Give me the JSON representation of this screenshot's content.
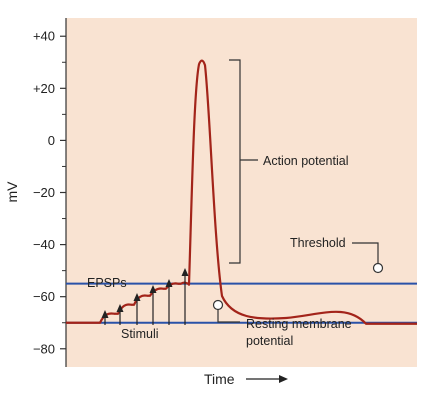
{
  "chart_data": {
    "type": "line",
    "xlabel": "Time",
    "ylabel": "mV",
    "ylim": [
      -87,
      47
    ],
    "y_ticks": [
      {
        "value": 40,
        "label": "+40"
      },
      {
        "value": 20,
        "label": "+20"
      },
      {
        "value": 0,
        "label": "0"
      },
      {
        "value": -20,
        "label": "−20"
      },
      {
        "value": -40,
        "label": "−40"
      },
      {
        "value": -60,
        "label": "−60"
      },
      {
        "value": -80,
        "label": "−80"
      }
    ],
    "threshold_mV": -55,
    "resting_mV": -70,
    "peak_mV": 30,
    "stimuli_count": 6,
    "annotations": {
      "action_potential": "Action potential",
      "threshold": "Threshold",
      "epsps": "EPSPs",
      "stimuli": "Stimuli",
      "resting_line1": "Resting membrane",
      "resting_line2": "potential"
    },
    "colors": {
      "trace": "#a3241a",
      "reference_lines": "#2a52a8",
      "plot_background": "#f9e3d2"
    }
  }
}
